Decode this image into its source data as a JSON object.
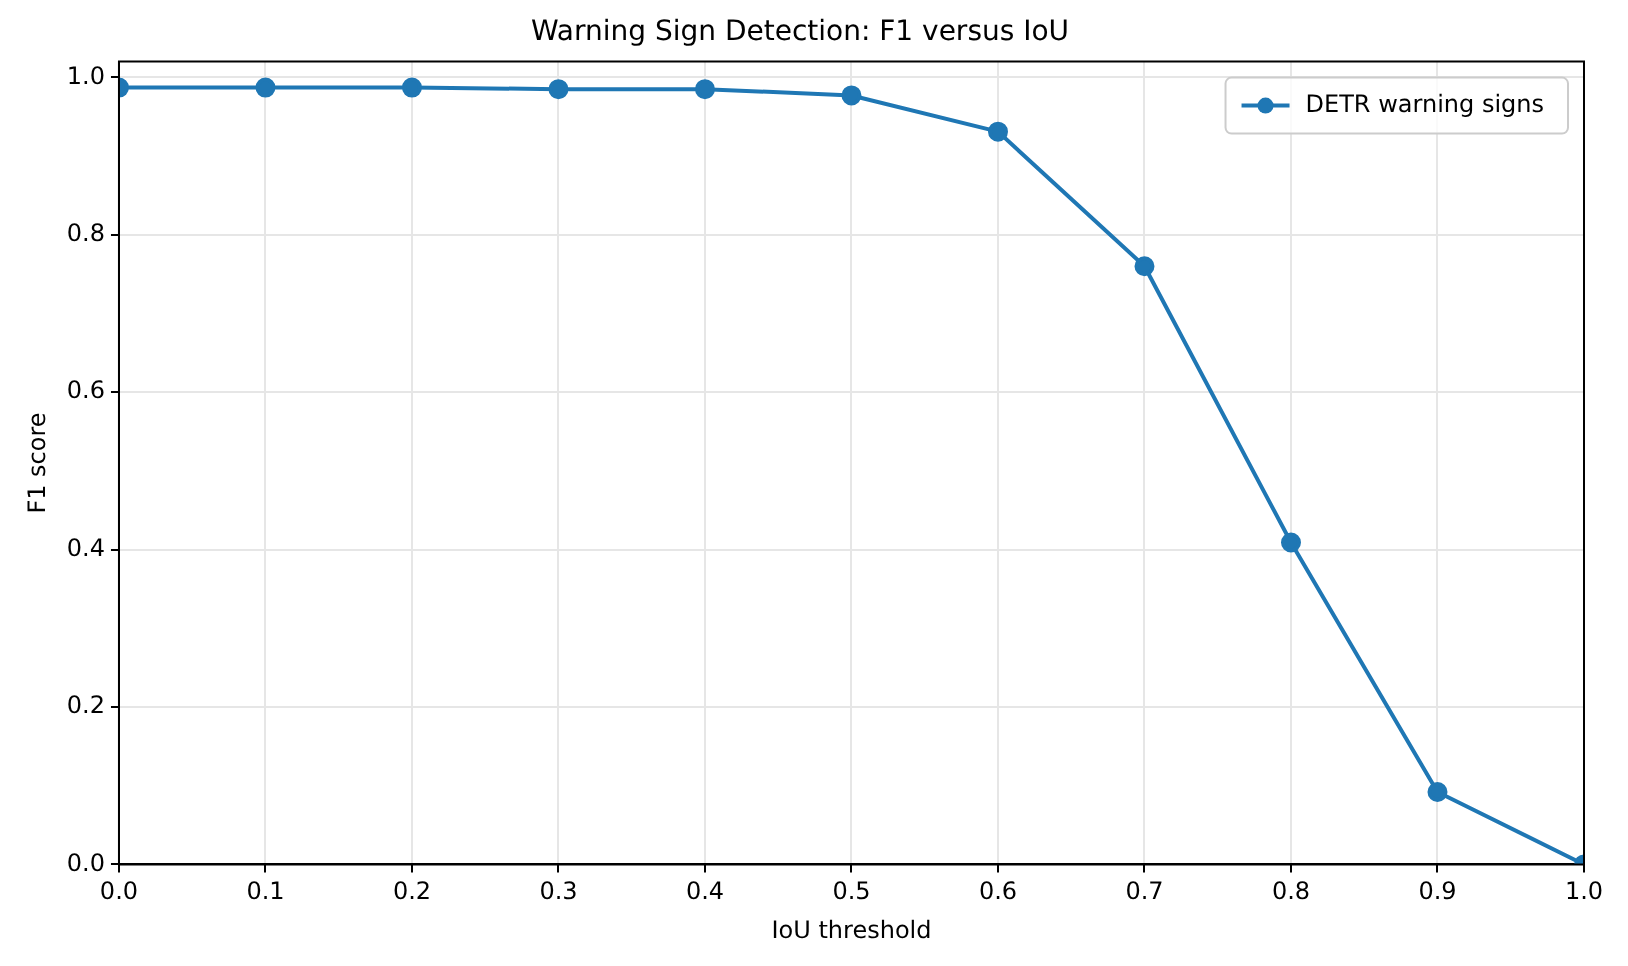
{
  "chart_data": {
    "type": "line",
    "title": "Warning Sign Detection: F1 versus IoU",
    "xlabel": "IoU threshold",
    "ylabel": "F1 score",
    "x": [
      0,
      0.1,
      0.2,
      0.3,
      0.4,
      0.5,
      0.6,
      0.7,
      0.8,
      0.9,
      1.0
    ],
    "series": [
      {
        "name": "DETR warning signs",
        "color": "#1f77b4",
        "values": [
          0.987,
          0.987,
          0.987,
          0.985,
          0.985,
          0.977,
          0.931,
          0.76,
          0.409,
          0.092,
          0.0
        ]
      }
    ],
    "xlim": [
      0,
      1
    ],
    "xticks": [
      {
        "value": 0,
        "label": "0.0"
      },
      0.1,
      0.2,
      0.3,
      0.4,
      0.5,
      0.6,
      0.7,
      0.8,
      0.9,
      {
        "value": 1,
        "label": "1.0"
      }
    ],
    "ylim": [
      0,
      1.02
    ],
    "yticks": [
      {
        "value": 0,
        "label": "0.0"
      },
      0.2,
      0.4,
      0.6,
      0.8,
      {
        "value": 1,
        "label": "1.0"
      }
    ],
    "grid": true,
    "legend": "top right",
    "marker": "circle",
    "line_style": "solid"
  }
}
